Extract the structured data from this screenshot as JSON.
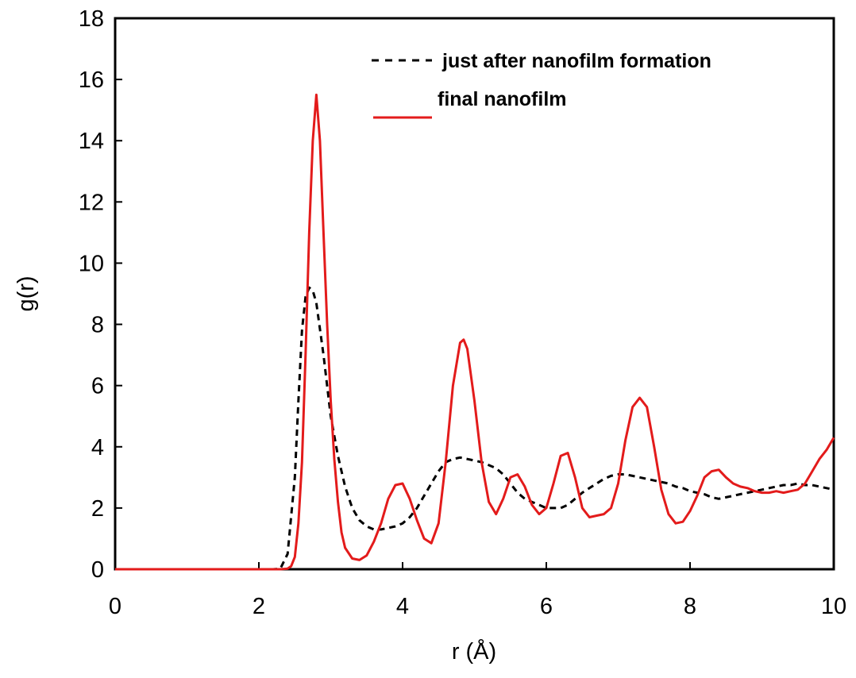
{
  "chart_data": {
    "type": "line",
    "title": "",
    "xlabel": "r (Å)",
    "ylabel": "g(r)",
    "xlim": [
      0,
      10
    ],
    "ylim": [
      0,
      18
    ],
    "xticks": [
      0,
      2,
      4,
      6,
      8,
      10
    ],
    "yticks": [
      0,
      2,
      4,
      6,
      8,
      10,
      12,
      14,
      16,
      18
    ],
    "grid": false,
    "legend_position": "top-right",
    "series": [
      {
        "name": "just after nanofilm formation",
        "color": "#000000",
        "style": "dashed",
        "x": [
          0,
          2.0,
          2.2,
          2.3,
          2.4,
          2.5,
          2.55,
          2.6,
          2.65,
          2.7,
          2.75,
          2.8,
          2.9,
          3.0,
          3.1,
          3.2,
          3.3,
          3.4,
          3.5,
          3.6,
          3.7,
          3.8,
          3.9,
          4.0,
          4.1,
          4.2,
          4.3,
          4.4,
          4.5,
          4.6,
          4.7,
          4.8,
          4.9,
          5.0,
          5.1,
          5.2,
          5.3,
          5.4,
          5.5,
          5.6,
          5.7,
          5.8,
          5.9,
          6.0,
          6.1,
          6.2,
          6.3,
          6.4,
          6.5,
          6.6,
          6.7,
          6.8,
          6.9,
          7.0,
          7.1,
          7.2,
          7.3,
          7.4,
          7.5,
          7.6,
          7.7,
          7.8,
          7.9,
          8.0,
          8.1,
          8.2,
          8.3,
          8.4,
          8.5,
          8.6,
          8.7,
          8.8,
          8.9,
          9.0,
          9.1,
          9.2,
          9.3,
          9.4,
          9.5,
          9.6,
          9.7,
          9.8,
          9.9,
          10.0
        ],
        "y": [
          0,
          0,
          0,
          0.02,
          0.5,
          3.0,
          5.5,
          7.8,
          8.9,
          9.2,
          9.1,
          8.7,
          7.0,
          5.0,
          3.7,
          2.7,
          2.0,
          1.6,
          1.4,
          1.3,
          1.3,
          1.35,
          1.4,
          1.5,
          1.7,
          2.0,
          2.4,
          2.8,
          3.2,
          3.5,
          3.6,
          3.65,
          3.6,
          3.55,
          3.5,
          3.4,
          3.3,
          3.1,
          2.8,
          2.5,
          2.3,
          2.2,
          2.1,
          2.0,
          2.0,
          2.0,
          2.1,
          2.3,
          2.5,
          2.65,
          2.8,
          2.95,
          3.05,
          3.1,
          3.1,
          3.05,
          3.0,
          2.95,
          2.9,
          2.85,
          2.8,
          2.7,
          2.65,
          2.55,
          2.5,
          2.45,
          2.35,
          2.3,
          2.35,
          2.4,
          2.45,
          2.5,
          2.55,
          2.6,
          2.65,
          2.7,
          2.75,
          2.75,
          2.8,
          2.75,
          2.75,
          2.7,
          2.65,
          2.6
        ]
      },
      {
        "name": "final nanofilm",
        "color": "#e31b1b",
        "style": "solid",
        "x": [
          0,
          2.3,
          2.4,
          2.45,
          2.5,
          2.55,
          2.6,
          2.65,
          2.7,
          2.75,
          2.8,
          2.85,
          2.9,
          2.95,
          3.0,
          3.05,
          3.1,
          3.15,
          3.2,
          3.3,
          3.4,
          3.5,
          3.6,
          3.7,
          3.8,
          3.9,
          4.0,
          4.1,
          4.2,
          4.3,
          4.4,
          4.5,
          4.6,
          4.7,
          4.8,
          4.85,
          4.9,
          5.0,
          5.1,
          5.2,
          5.3,
          5.4,
          5.5,
          5.6,
          5.7,
          5.8,
          5.9,
          6.0,
          6.1,
          6.2,
          6.3,
          6.4,
          6.5,
          6.6,
          6.7,
          6.8,
          6.9,
          7.0,
          7.1,
          7.2,
          7.3,
          7.4,
          7.5,
          7.6,
          7.7,
          7.8,
          7.9,
          8.0,
          8.1,
          8.2,
          8.3,
          8.4,
          8.5,
          8.6,
          8.7,
          8.8,
          8.9,
          9.0,
          9.1,
          9.2,
          9.3,
          9.4,
          9.5,
          9.6,
          9.7,
          9.8,
          9.9,
          10.0
        ],
        "y": [
          0,
          0,
          0.02,
          0.1,
          0.4,
          1.5,
          3.5,
          7.0,
          11.0,
          14.0,
          15.5,
          14.0,
          11.0,
          8.0,
          5.5,
          3.6,
          2.2,
          1.2,
          0.7,
          0.35,
          0.3,
          0.45,
          0.9,
          1.5,
          2.3,
          2.75,
          2.8,
          2.3,
          1.6,
          1.0,
          0.85,
          1.5,
          3.5,
          6.0,
          7.4,
          7.5,
          7.2,
          5.5,
          3.5,
          2.2,
          1.8,
          2.3,
          3.0,
          3.1,
          2.7,
          2.1,
          1.8,
          2.0,
          2.8,
          3.7,
          3.8,
          3.0,
          2.0,
          1.7,
          1.75,
          1.8,
          2.0,
          2.8,
          4.2,
          5.3,
          5.6,
          5.3,
          4.0,
          2.6,
          1.8,
          1.5,
          1.55,
          1.9,
          2.4,
          3.0,
          3.2,
          3.25,
          3.0,
          2.8,
          2.7,
          2.65,
          2.55,
          2.5,
          2.5,
          2.55,
          2.5,
          2.55,
          2.6,
          2.8,
          3.2,
          3.6,
          3.9,
          4.3
        ]
      }
    ]
  }
}
